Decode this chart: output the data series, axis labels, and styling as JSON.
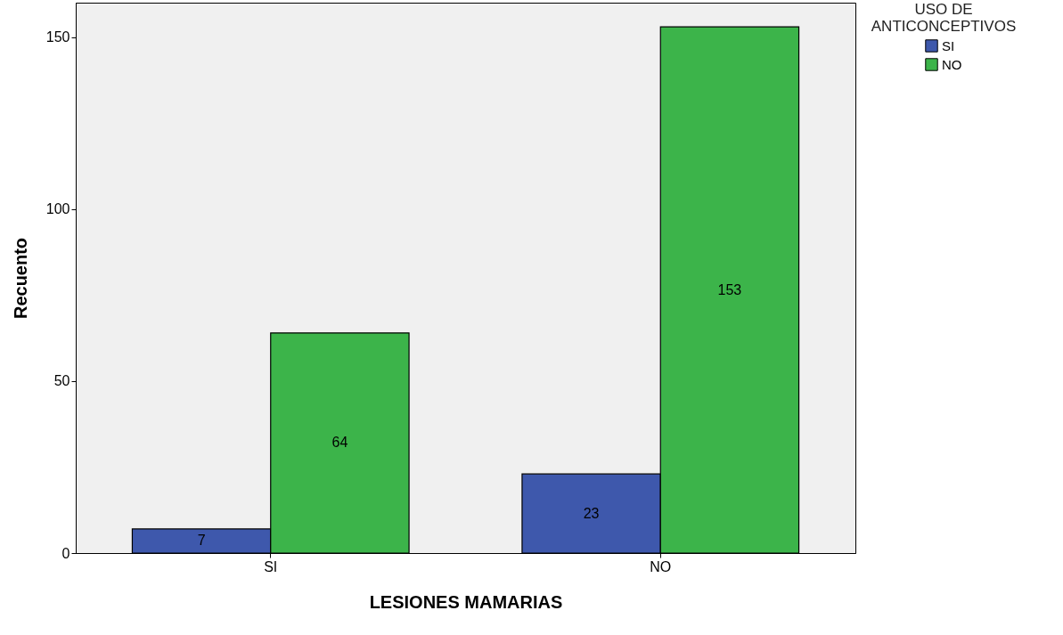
{
  "chart_data": {
    "type": "bar",
    "xlabel": "LESIONES MAMARIAS",
    "ylabel": "Recuento",
    "legend_title": "USO DE ANTICONCEPTIVOS",
    "categories": [
      "SI",
      "NO"
    ],
    "series": [
      {
        "name": "SI",
        "color": "#3e58ac",
        "values": [
          7,
          23
        ]
      },
      {
        "name": "NO",
        "color": "#3cb44a",
        "values": [
          64,
          153
        ]
      }
    ],
    "ylim": [
      0,
      160
    ],
    "yticks": [
      0,
      50,
      100,
      150
    ],
    "grid": false,
    "legend": "right",
    "data_labels": true
  }
}
